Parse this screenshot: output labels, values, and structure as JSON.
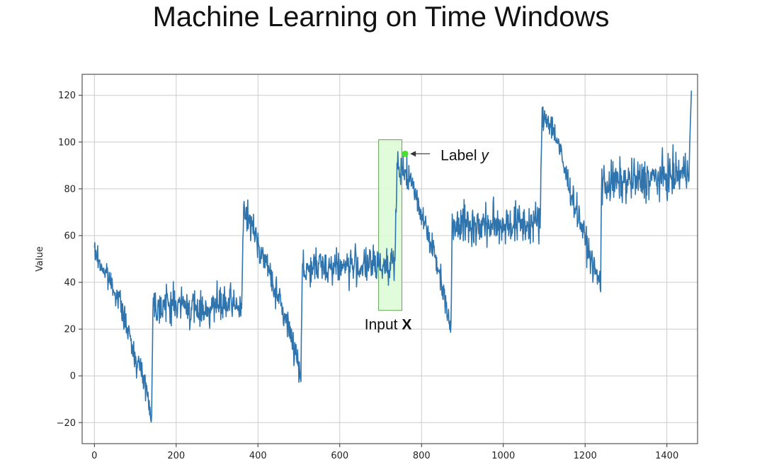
{
  "slide": {
    "title": "Machine Learning on Time Windows"
  },
  "colors": {
    "series": "#2f74ad",
    "window_fill": "#dcfbd4",
    "window_stroke": "#5fa453",
    "label_point": "#46e22f",
    "grid": "#cccccc"
  },
  "chart_data": {
    "type": "line",
    "title": "",
    "xlabel": "",
    "ylabel": "Value",
    "xlim": [
      -30,
      1475
    ],
    "ylim": [
      -29,
      129
    ],
    "grid": true,
    "x_ticks": [
      0,
      200,
      400,
      600,
      800,
      1000,
      1200,
      1400
    ],
    "y_ticks": [
      -20,
      0,
      20,
      40,
      60,
      80,
      100,
      120
    ],
    "series": [
      {
        "name": "Value",
        "trend_points": [
          [
            0,
            53
          ],
          [
            20,
            46
          ],
          [
            40,
            40
          ],
          [
            60,
            33
          ],
          [
            80,
            20
          ],
          [
            100,
            8
          ],
          [
            120,
            0
          ],
          [
            130,
            -8
          ],
          [
            140,
            -18
          ],
          [
            143,
            30
          ],
          [
            200,
            31
          ],
          [
            250,
            28
          ],
          [
            300,
            30
          ],
          [
            360,
            30
          ],
          [
            365,
            70
          ],
          [
            380,
            66
          ],
          [
            400,
            57
          ],
          [
            420,
            48
          ],
          [
            440,
            38
          ],
          [
            460,
            28
          ],
          [
            480,
            18
          ],
          [
            495,
            8
          ],
          [
            505,
            1
          ],
          [
            508,
            45
          ],
          [
            560,
            47
          ],
          [
            620,
            47
          ],
          [
            680,
            47
          ],
          [
            720,
            48
          ],
          [
            735,
            50
          ],
          [
            740,
            87
          ],
          [
            760,
            88
          ],
          [
            780,
            80
          ],
          [
            800,
            70
          ],
          [
            820,
            59
          ],
          [
            840,
            46
          ],
          [
            860,
            32
          ],
          [
            872,
            18
          ],
          [
            875,
            67
          ],
          [
            930,
            64
          ],
          [
            1000,
            65
          ],
          [
            1060,
            65
          ],
          [
            1090,
            66
          ],
          [
            1095,
            110
          ],
          [
            1110,
            110
          ],
          [
            1130,
            102
          ],
          [
            1150,
            88
          ],
          [
            1170,
            76
          ],
          [
            1190,
            65
          ],
          [
            1210,
            52
          ],
          [
            1230,
            42
          ],
          [
            1238,
            40
          ],
          [
            1240,
            82
          ],
          [
            1300,
            83
          ],
          [
            1350,
            84
          ],
          [
            1400,
            85
          ],
          [
            1450,
            87
          ],
          [
            1455,
            95
          ],
          [
            1460,
            122
          ]
        ],
        "noise_amplitude": [
          [
            0,
            4
          ],
          [
            140,
            4
          ],
          [
            143,
            6
          ],
          [
            360,
            6
          ],
          [
            365,
            5
          ],
          [
            505,
            5
          ],
          [
            508,
            6
          ],
          [
            735,
            6
          ],
          [
            740,
            5
          ],
          [
            872,
            5
          ],
          [
            875,
            7
          ],
          [
            1090,
            7
          ],
          [
            1095,
            5
          ],
          [
            1238,
            5
          ],
          [
            1240,
            7
          ],
          [
            1460,
            7
          ]
        ]
      }
    ],
    "annotations": [
      {
        "type": "window",
        "x_start": 695,
        "x_end": 752,
        "y_low": 28,
        "y_high": 101,
        "text_prefix": "Input ",
        "text_emphasis": "X"
      },
      {
        "type": "point",
        "x": 760,
        "y": 95,
        "text_prefix": "Label ",
        "text_emphasis": "y"
      }
    ]
  }
}
